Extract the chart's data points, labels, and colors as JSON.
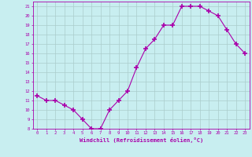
{
  "x": [
    0,
    1,
    2,
    3,
    4,
    5,
    6,
    7,
    8,
    9,
    10,
    11,
    12,
    13,
    14,
    15,
    16,
    17,
    18,
    19,
    20,
    21,
    22,
    23
  ],
  "y": [
    11.5,
    11.0,
    11.0,
    10.5,
    10.0,
    9.0,
    8.0,
    8.0,
    10.0,
    11.0,
    12.0,
    14.5,
    16.5,
    17.5,
    19.0,
    19.0,
    21.0,
    21.0,
    21.0,
    20.5,
    20.0,
    18.5,
    17.0,
    16.0
  ],
  "line_color": "#aa00aa",
  "marker": "+",
  "marker_size": 4,
  "bg_color": "#c8eef0",
  "grid_color": "#aacccc",
  "xlabel": "Windchill (Refroidissement éolien,°C)",
  "xlabel_color": "#aa00aa",
  "tick_color": "#aa00aa",
  "ylim": [
    8,
    21.5
  ],
  "xlim": [
    -0.5,
    23.5
  ],
  "yticks": [
    8,
    9,
    10,
    11,
    12,
    13,
    14,
    15,
    16,
    17,
    18,
    19,
    20,
    21
  ],
  "xticks": [
    0,
    1,
    2,
    3,
    4,
    5,
    6,
    7,
    8,
    9,
    10,
    11,
    12,
    13,
    14,
    15,
    16,
    17,
    18,
    19,
    20,
    21,
    22,
    23
  ]
}
